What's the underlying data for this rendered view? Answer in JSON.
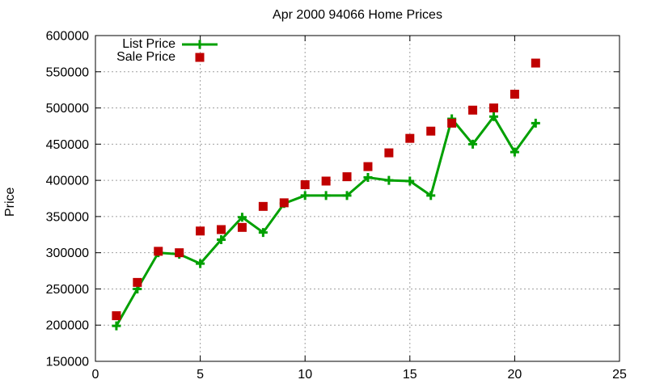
{
  "title": "Apr 2000 94066 Home Prices",
  "ylabel": "Price",
  "legend": {
    "list_label": "List Price",
    "sale_label": "Sale Price"
  },
  "colors": {
    "list_series": "#00a000",
    "sale_series": "#c00000",
    "grid": "#a0a0a0",
    "axis": "#000000",
    "background": "#ffffff"
  },
  "chart_data": {
    "type": "line",
    "title": "Apr 2000 94066 Home Prices",
    "xlabel": "",
    "ylabel": "Price",
    "x": [
      1,
      2,
      3,
      4,
      5,
      6,
      7,
      8,
      9,
      10,
      11,
      12,
      13,
      14,
      15,
      16,
      17,
      18,
      19,
      20,
      21
    ],
    "series": [
      {
        "name": "List Price",
        "style": "line-with-plus-markers",
        "color": "#00a000",
        "values": [
          199000,
          250000,
          300000,
          298000,
          285000,
          318000,
          349000,
          328000,
          368000,
          379000,
          379000,
          379000,
          404000,
          400000,
          399000,
          379000,
          485000,
          450000,
          488000,
          439000,
          479000
        ]
      },
      {
        "name": "Sale Price",
        "style": "scatter-filled-squares",
        "color": "#c00000",
        "values": [
          213000,
          259000,
          302000,
          300000,
          330000,
          332000,
          335000,
          364000,
          369000,
          394000,
          399000,
          405000,
          419000,
          438000,
          458000,
          468000,
          479000,
          497000,
          500000,
          519000,
          562000
        ]
      }
    ],
    "xlim": [
      0,
      25
    ],
    "ylim": [
      150000,
      600000
    ],
    "xticks": [
      0,
      5,
      10,
      15,
      20,
      25
    ],
    "yticks": [
      150000,
      200000,
      250000,
      300000,
      350000,
      400000,
      450000,
      500000,
      550000,
      600000
    ],
    "grid": true,
    "legend_position": "top-left"
  }
}
